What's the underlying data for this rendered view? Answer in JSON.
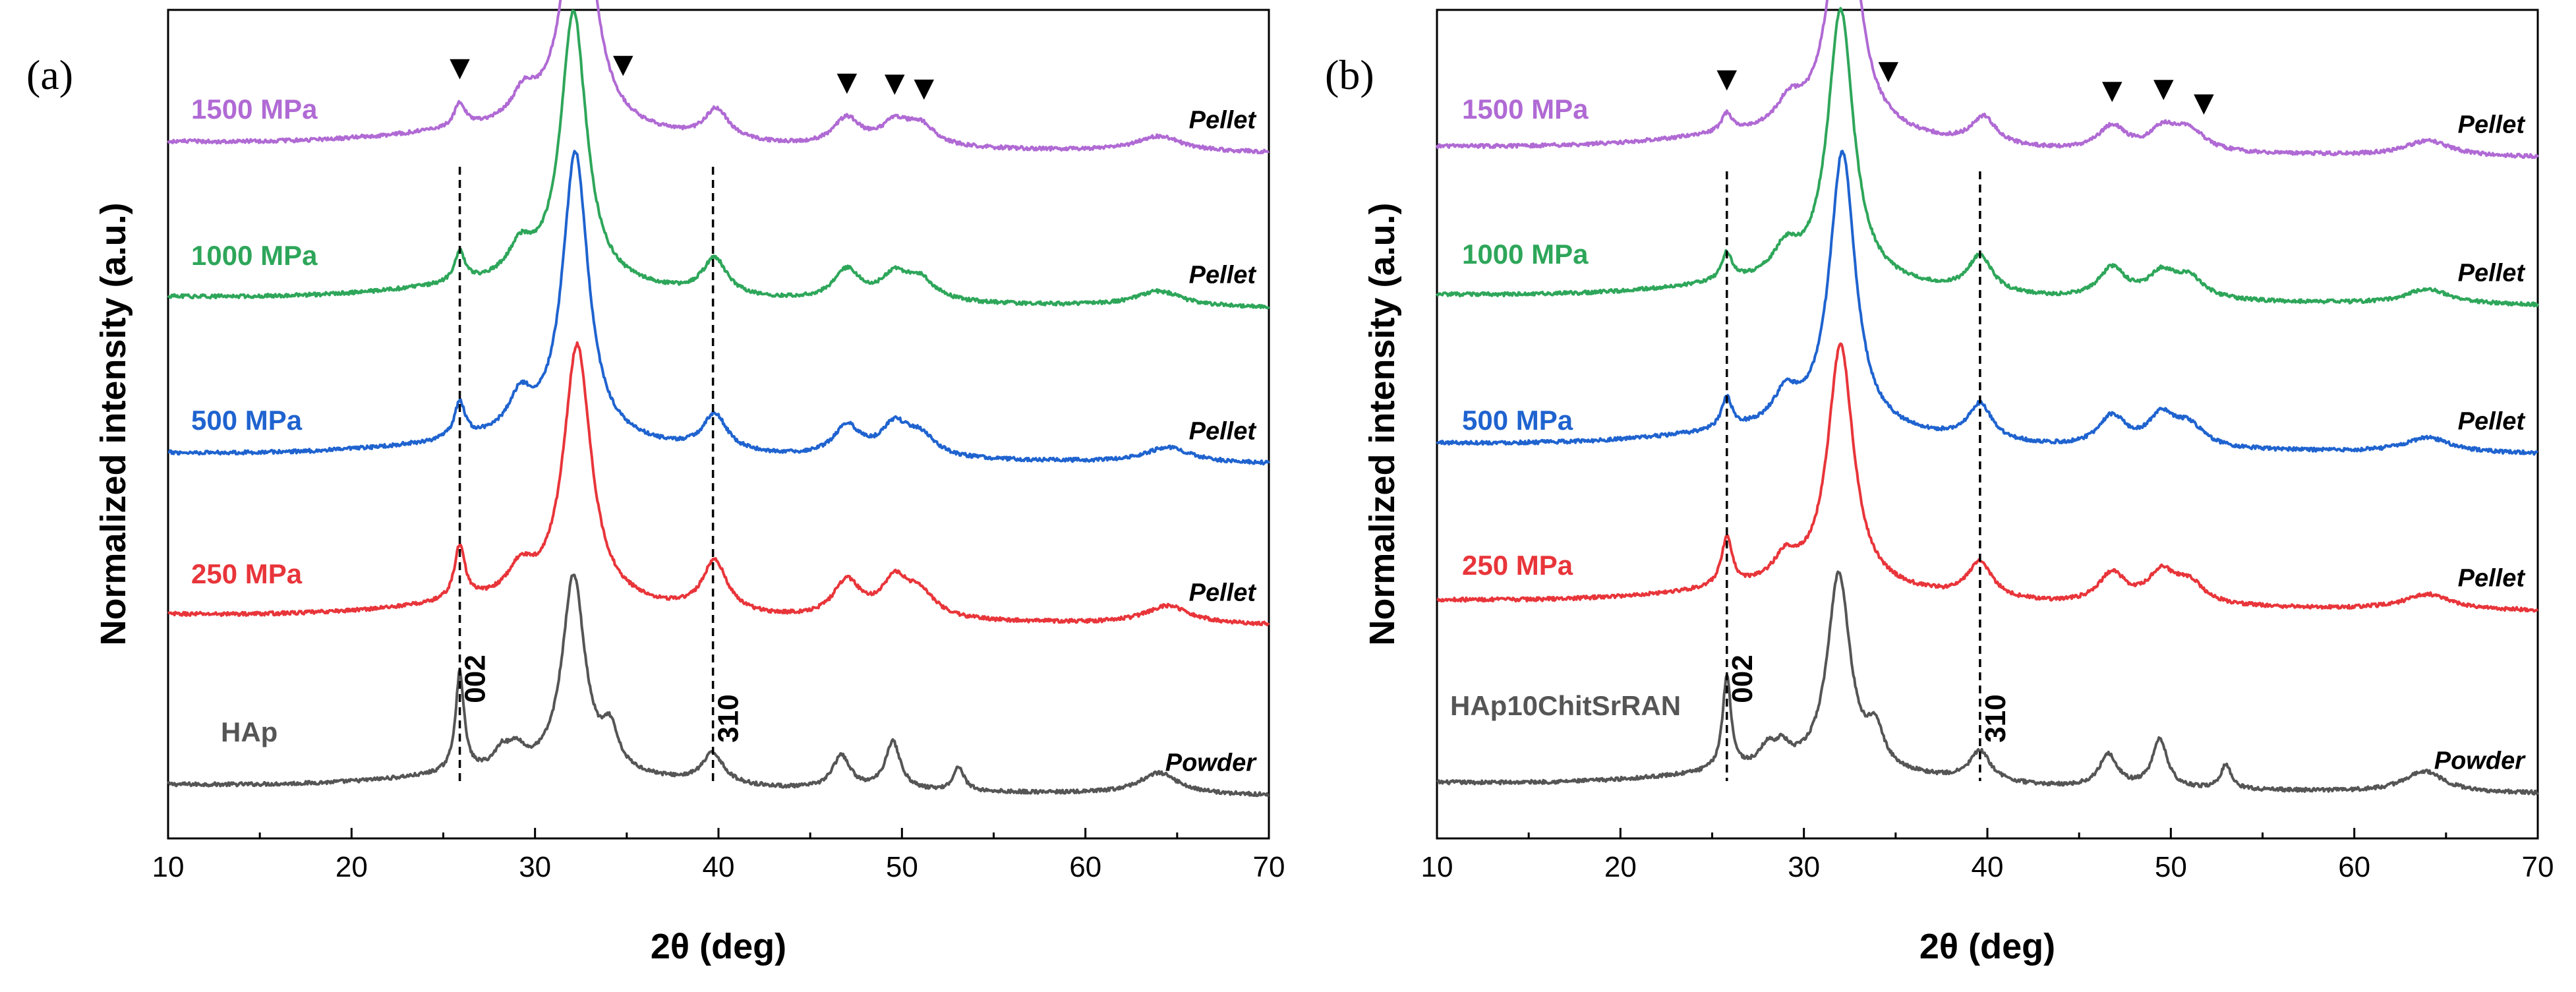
{
  "chart_data": [
    {
      "type": "line",
      "panel_label": "(a)",
      "xlabel": "2θ (deg)",
      "ylabel": "Normalized intensity (a.u.)",
      "xlim": [
        10,
        70
      ],
      "xticks": [
        "10",
        "20",
        "30",
        "40",
        "50",
        "60",
        "70"
      ],
      "ytick_labels": "none",
      "reference_lines": [
        {
          "x": 25.9,
          "label": "002"
        },
        {
          "x": 39.7,
          "label": "310"
        }
      ],
      "markers": {
        "symbol": "▼",
        "on_series": "1500 MPa",
        "x": [
          25.9,
          34.8,
          47.0,
          49.6,
          51.2
        ]
      },
      "series": [
        {
          "name": "HAp",
          "sample": "Powder",
          "color": "#555555",
          "offset": 0.0,
          "peaks": [
            [
              25.9,
              0.33,
              0.28
            ],
            [
              28.2,
              0.06,
              0.5
            ],
            [
              29.0,
              0.06,
              0.5
            ],
            [
              32.1,
              0.65,
              0.75
            ],
            [
              34.1,
              0.12,
              0.5
            ],
            [
              39.7,
              0.1,
              0.7
            ],
            [
              46.7,
              0.11,
              0.6
            ],
            [
              49.5,
              0.16,
              0.5
            ],
            [
              53.1,
              0.08,
              0.35
            ],
            [
              64.0,
              0.07,
              1.3
            ]
          ]
        },
        {
          "name": "250 MPa",
          "sample": "Pellet",
          "color": "#e8353a",
          "offset": 1.0,
          "peaks": [
            [
              25.9,
              0.18,
              0.35
            ],
            [
              29.2,
              0.09,
              0.8
            ],
            [
              32.3,
              0.85,
              0.9
            ],
            [
              39.8,
              0.17,
              0.8
            ],
            [
              47.0,
              0.12,
              0.9
            ],
            [
              49.6,
              0.12,
              0.9
            ],
            [
              51.0,
              0.08,
              1.0
            ],
            [
              64.5,
              0.06,
              1.5
            ]
          ]
        },
        {
          "name": "500 MPa",
          "sample": "Pellet",
          "color": "#1f63cf",
          "offset": 2.05,
          "peaks": [
            [
              25.9,
              0.12,
              0.35
            ],
            [
              29.2,
              0.12,
              0.8
            ],
            [
              32.2,
              0.95,
              0.85
            ],
            [
              39.8,
              0.12,
              0.8
            ],
            [
              47.0,
              0.1,
              0.9
            ],
            [
              49.6,
              0.1,
              0.9
            ],
            [
              51.0,
              0.07,
              1.0
            ],
            [
              64.5,
              0.05,
              1.5
            ]
          ]
        },
        {
          "name": "1000 MPa",
          "sample": "Pellet",
          "color": "#2ea65a",
          "offset": 3.05,
          "peaks": [
            [
              25.9,
              0.1,
              0.35
            ],
            [
              29.2,
              0.1,
              0.8
            ],
            [
              32.1,
              0.9,
              0.85
            ],
            [
              39.8,
              0.12,
              0.8
            ],
            [
              47.0,
              0.1,
              0.9
            ],
            [
              49.6,
              0.08,
              0.9
            ],
            [
              51.0,
              0.07,
              1.0
            ],
            [
              64.0,
              0.05,
              1.5
            ]
          ]
        },
        {
          "name": "1500 MPa",
          "sample": "Pellet",
          "color": "#b06ad4",
          "offset": 4.0,
          "peaks": [
            [
              25.9,
              0.08,
              0.35
            ],
            [
              29.4,
              0.09,
              0.8
            ],
            [
              32.4,
              0.95,
              0.9
            ],
            [
              39.9,
              0.1,
              0.8
            ],
            [
              47.0,
              0.09,
              0.9
            ],
            [
              49.6,
              0.07,
              0.9
            ],
            [
              51.0,
              0.07,
              1.0
            ],
            [
              64.0,
              0.05,
              1.5
            ]
          ]
        }
      ]
    },
    {
      "type": "line",
      "panel_label": "(b)",
      "xlabel": "2θ (deg)",
      "ylabel": "Normalized intensity (a.u.)",
      "xlim": [
        10,
        70
      ],
      "xticks": [
        "10",
        "20",
        "30",
        "40",
        "50",
        "60",
        "70"
      ],
      "ytick_labels": "none",
      "reference_lines": [
        {
          "x": 25.8,
          "label": "002"
        },
        {
          "x": 39.6,
          "label": "310"
        }
      ],
      "markers": {
        "symbol": "▼",
        "on_series": "1500 MPa",
        "x": [
          25.8,
          34.6,
          46.8,
          49.6,
          51.8
        ]
      },
      "series": [
        {
          "name": "HAp10ChitSrRAN",
          "sample": "Powder",
          "color": "#555555",
          "offset": 0.0,
          "peaks": [
            [
              25.8,
              0.31,
              0.28
            ],
            [
              28.0,
              0.06,
              0.5
            ],
            [
              28.8,
              0.06,
              0.5
            ],
            [
              31.9,
              0.65,
              0.75
            ],
            [
              33.9,
              0.12,
              0.5
            ],
            [
              39.6,
              0.1,
              0.7
            ],
            [
              46.6,
              0.11,
              0.6
            ],
            [
              49.4,
              0.16,
              0.5
            ],
            [
              53.0,
              0.08,
              0.35
            ],
            [
              63.8,
              0.07,
              1.3
            ]
          ]
        },
        {
          "name": "250 MPa",
          "sample": "Pellet",
          "color": "#e8353a",
          "offset": 1.0,
          "peaks": [
            [
              25.8,
              0.16,
              0.35
            ],
            [
              29.0,
              0.08,
              0.8
            ],
            [
              32.0,
              0.8,
              0.85
            ],
            [
              39.6,
              0.12,
              0.8
            ],
            [
              46.8,
              0.1,
              0.9
            ],
            [
              49.5,
              0.1,
              0.9
            ],
            [
              51.0,
              0.07,
              1.0
            ],
            [
              64.0,
              0.05,
              1.5
            ]
          ]
        },
        {
          "name": "500 MPa",
          "sample": "Pellet",
          "color": "#1f63cf",
          "offset": 2.0,
          "peaks": [
            [
              25.8,
              0.1,
              0.35
            ],
            [
              29.0,
              0.1,
              0.8
            ],
            [
              32.1,
              0.92,
              0.85
            ],
            [
              39.6,
              0.12,
              0.8
            ],
            [
              46.8,
              0.1,
              0.9
            ],
            [
              49.5,
              0.1,
              0.9
            ],
            [
              51.0,
              0.07,
              1.0
            ],
            [
              64.0,
              0.05,
              1.5
            ]
          ]
        },
        {
          "name": "1000 MPa",
          "sample": "Pellet",
          "color": "#2ea65a",
          "offset": 3.0,
          "peaks": [
            [
              25.8,
              0.09,
              0.35
            ],
            [
              29.0,
              0.09,
              0.8
            ],
            [
              32.0,
              0.9,
              0.85
            ],
            [
              39.6,
              0.12,
              0.8
            ],
            [
              46.8,
              0.1,
              0.9
            ],
            [
              49.5,
              0.08,
              0.9
            ],
            [
              51.0,
              0.07,
              1.0
            ],
            [
              64.0,
              0.05,
              1.5
            ]
          ]
        },
        {
          "name": "1500 MPa",
          "sample": "Pellet",
          "color": "#b06ad4",
          "offset": 4.0,
          "peaks": [
            [
              25.8,
              0.06,
              0.35
            ],
            [
              29.2,
              0.08,
              0.8
            ],
            [
              32.2,
              0.9,
              0.9
            ],
            [
              39.8,
              0.09,
              0.8
            ],
            [
              46.8,
              0.08,
              0.9
            ],
            [
              49.6,
              0.07,
              0.9
            ],
            [
              51.0,
              0.07,
              1.0
            ],
            [
              64.0,
              0.05,
              1.5
            ]
          ]
        }
      ]
    }
  ]
}
